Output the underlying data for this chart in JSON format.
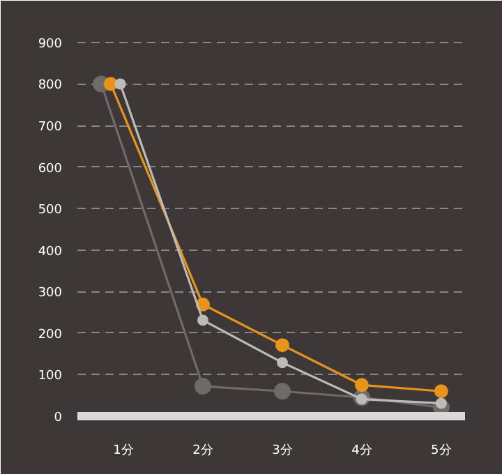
{
  "chart_data": {
    "type": "line",
    "xlim": [
      0.42,
      5.3
    ],
    "xticks": [
      {
        "value": 1,
        "label": "1分"
      },
      {
        "value": 2,
        "label": "2分"
      },
      {
        "value": 3,
        "label": "3分"
      },
      {
        "value": 4,
        "label": "4分"
      },
      {
        "value": 5,
        "label": "5分"
      }
    ],
    "ylim": [
      0,
      920
    ],
    "yticks": [
      0,
      100,
      200,
      300,
      400,
      500,
      600,
      700,
      800,
      900
    ],
    "grid": "y",
    "marker": "circle",
    "line_style": "solid",
    "series": [
      {
        "color": "#6e6b69",
        "x": [
          0.72,
          2,
          3,
          4,
          5
        ],
        "values": [
          800,
          72,
          60,
          45,
          21
        ]
      },
      {
        "color": "#e8941a",
        "x": [
          0.84,
          2,
          3,
          4,
          5
        ],
        "values": [
          800,
          269,
          171,
          75,
          60
        ]
      },
      {
        "color": "#bdbbba",
        "x": [
          0.96,
          2,
          3,
          4,
          5
        ],
        "values": [
          800,
          231,
          129,
          41,
          31
        ]
      }
    ]
  }
}
